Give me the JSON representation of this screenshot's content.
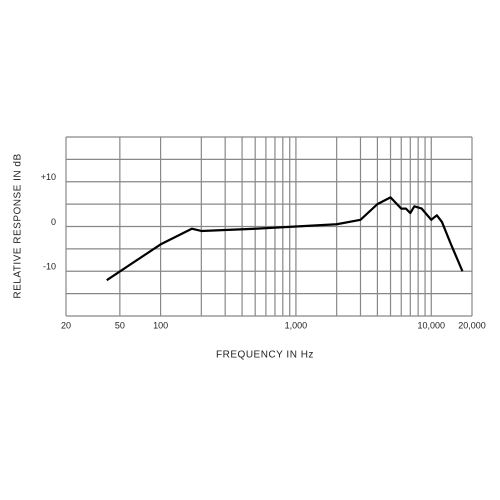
{
  "chart_data": {
    "type": "line",
    "xlabel": "FREQUENCY IN Hz",
    "ylabel": "RELATIVE RESPONSE IN dB",
    "xscale": "log",
    "xlim": [
      20,
      20000
    ],
    "ylim": [
      -20,
      20
    ],
    "xticks": [
      20,
      50,
      100,
      {
        "value": 1000,
        "label": "1,000"
      },
      {
        "value": 10000,
        "label": "10,000"
      },
      {
        "value": 20000,
        "label": "20,000"
      }
    ],
    "yticks": [
      {
        "value": 10,
        "label": "+10"
      },
      0,
      -10
    ],
    "xgrid": [
      20,
      50,
      100,
      200,
      300,
      400,
      500,
      600,
      700,
      800,
      900,
      1000,
      2000,
      3000,
      4000,
      5000,
      6000,
      7000,
      8000,
      9000,
      10000,
      20000
    ],
    "ygrid": [
      -20,
      -15,
      -10,
      -5,
      0,
      5,
      10,
      15,
      20
    ],
    "grid": true,
    "series": [
      {
        "color": "#000000",
        "x": [
          40,
          100,
          170,
          200,
          500,
          1000,
          2000,
          3000,
          4000,
          5000,
          6000,
          6500,
          7000,
          7500,
          8500,
          10000,
          11000,
          12000,
          14000,
          17000
        ],
        "values": [
          -12,
          -4,
          -0.5,
          -1,
          -0.5,
          0,
          0.5,
          1.5,
          5,
          6.5,
          4,
          4,
          3,
          4.5,
          4,
          1.5,
          2.5,
          1,
          -4,
          -10
        ]
      }
    ]
  }
}
